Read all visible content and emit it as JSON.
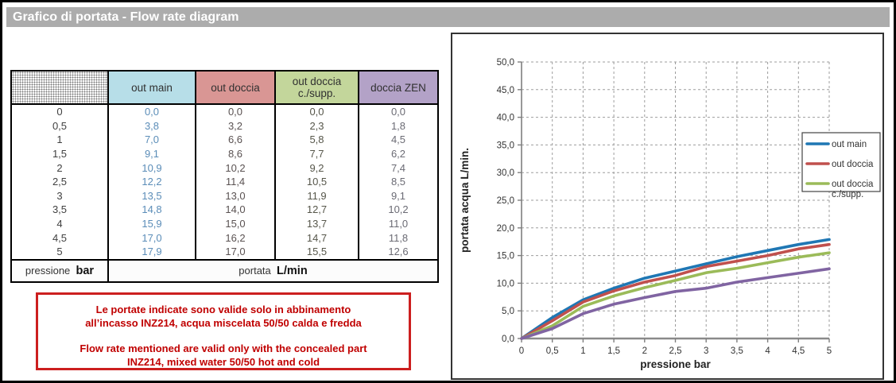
{
  "title_bar": {
    "text": "Grafico di portata - Flow rate diagram",
    "bg": "#acacac"
  },
  "table": {
    "headers": [
      {
        "label": "",
        "bg": "pattern"
      },
      {
        "label": "out main",
        "bg": "#b7dee8"
      },
      {
        "label": "out doccia",
        "bg": "#d99694"
      },
      {
        "label": "out doccia c./supp.",
        "bg": "#c3d69b"
      },
      {
        "label": "doccia ZEN",
        "bg": "#b3a2c7"
      }
    ],
    "value_colors": [
      "#404040",
      "#5b8db8",
      "#5a5252",
      "#56564a",
      "#6b6b74"
    ],
    "rows": [
      [
        "0",
        "0,0",
        "0,0",
        "0,0",
        "0,0"
      ],
      [
        "0,5",
        "3,8",
        "3,2",
        "2,3",
        "1,8"
      ],
      [
        "1",
        "7,0",
        "6,6",
        "5,8",
        "4,5"
      ],
      [
        "1,5",
        "9,1",
        "8,6",
        "7,7",
        "6,2"
      ],
      [
        "2",
        "10,9",
        "10,2",
        "9,2",
        "7,4"
      ],
      [
        "2,5",
        "12,2",
        "11,4",
        "10,5",
        "8,5"
      ],
      [
        "3",
        "13,5",
        "13,0",
        "11,9",
        "9,1"
      ],
      [
        "3,5",
        "14,8",
        "14,0",
        "12,7",
        "10,2"
      ],
      [
        "4",
        "15,9",
        "15,0",
        "13,7",
        "11,0"
      ],
      [
        "4,5",
        "17,0",
        "16,2",
        "14,7",
        "11,8"
      ],
      [
        "5",
        "17,9",
        "17,0",
        "15,5",
        "12,6"
      ]
    ],
    "footer": {
      "left_label": "pressione",
      "left_unit": "bar",
      "right_label": "portata",
      "right_unit": "L/min"
    }
  },
  "note_box": {
    "it_line1": "Le portate indicate sono valide solo in abbinamento",
    "it_line2": "all’incasso INZ214, acqua miscelata 50/50 calda e fredda",
    "en_line1": "Flow rate mentioned are valid only with the concealed part",
    "en_line2": "INZ214, mixed water 50/50 hot and cold",
    "border_color": "#cc1f1f",
    "text_color": "#c00000"
  },
  "chart_data": {
    "type": "line",
    "title": "",
    "xlabel": "pressione bar",
    "ylabel": "portata acqua L/min.",
    "xlim": [
      0,
      5
    ],
    "ylim": [
      0,
      50
    ],
    "grid": "dashed",
    "legend_position": "right-overlapping-plot",
    "x": [
      0,
      0.5,
      1,
      1.5,
      2,
      2.5,
      3,
      3.5,
      4,
      4.5,
      5
    ],
    "x_tick_labels": [
      "0",
      "0,5",
      "1",
      "1,5",
      "2",
      "2,5",
      "3",
      "3,5",
      "4",
      "4,5",
      "5"
    ],
    "y_tick_values": [
      0,
      5,
      10,
      15,
      20,
      25,
      30,
      35,
      40,
      45,
      50
    ],
    "y_tick_labels": [
      "0,0",
      "5,0",
      "10,0",
      "15,0",
      "20,0",
      "25,0",
      "30,0",
      "35,0",
      "40,0",
      "45,0",
      "50,0"
    ],
    "series": [
      {
        "name": "out main",
        "color": "#1f77b4",
        "values": [
          0.0,
          3.8,
          7.0,
          9.1,
          10.9,
          12.2,
          13.5,
          14.8,
          15.9,
          17.0,
          17.9
        ]
      },
      {
        "name": "out doccia",
        "color": "#c0504d",
        "values": [
          0.0,
          3.2,
          6.6,
          8.6,
          10.2,
          11.4,
          13.0,
          14.0,
          15.0,
          16.2,
          17.0
        ]
      },
      {
        "name": "out doccia c./supp.",
        "color": "#9bbb59",
        "values": [
          0.0,
          2.3,
          5.8,
          7.7,
          9.2,
          10.5,
          11.9,
          12.7,
          13.7,
          14.7,
          15.5
        ]
      },
      {
        "name": "doccia ZEN",
        "color": "#8064a2",
        "values": [
          0.0,
          1.8,
          4.5,
          6.2,
          7.4,
          8.5,
          9.1,
          10.2,
          11.0,
          11.8,
          12.6
        ]
      }
    ],
    "legend_entries": [
      {
        "lines": [
          "out main"
        ]
      },
      {
        "lines": [
          "out doccia"
        ]
      },
      {
        "lines": [
          "out doccia",
          "c./supp."
        ]
      }
    ]
  }
}
